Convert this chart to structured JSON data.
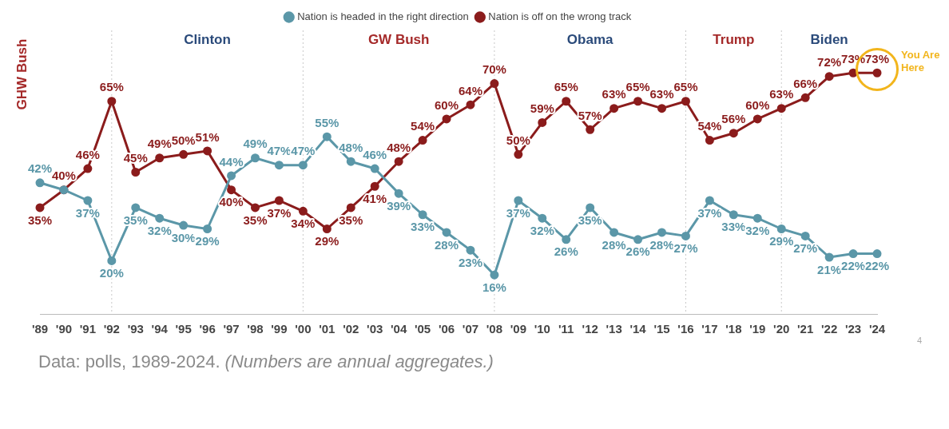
{
  "chart_data": {
    "type": "line",
    "categories": [
      "'89",
      "'90",
      "'91",
      "'92",
      "'93",
      "'94",
      "'95",
      "'96",
      "'97",
      "'98",
      "'99",
      "'00",
      "'01",
      "'02",
      "'03",
      "'04",
      "'05",
      "'06",
      "'07",
      "'08",
      "'09",
      "'10",
      "'11",
      "'12",
      "'13",
      "'14",
      "'15",
      "'16",
      "'17",
      "'18",
      "'19",
      "'20",
      "'21",
      "'22",
      "'23",
      "'24"
    ],
    "series": [
      {
        "name": "Nation is headed in the right direction",
        "color": "#5b97a8",
        "values": [
          42,
          40,
          37,
          20,
          35,
          32,
          30,
          29,
          44,
          49,
          47,
          47,
          55,
          48,
          46,
          39,
          33,
          28,
          23,
          16,
          37,
          32,
          26,
          35,
          28,
          26,
          28,
          27,
          37,
          33,
          32,
          29,
          27,
          21,
          22,
          22
        ],
        "value_labels": [
          "42%",
          null,
          "37%",
          "20%",
          "35%",
          "32%",
          "30%",
          "29%",
          "44%",
          "49%",
          "47%",
          "47%",
          "55%",
          "48%",
          "46%",
          "39%",
          "33%",
          "28%",
          "23%",
          "16%",
          "37%",
          "32%",
          "26%",
          "35%",
          "28%",
          "26%",
          "28%",
          "27%",
          "37%",
          "33%",
          "32%",
          "29%",
          "27%",
          "21%",
          "22%",
          "22%"
        ]
      },
      {
        "name": "Nation is off on the wrong track",
        "color": "#8b1c1c",
        "values": [
          35,
          40,
          46,
          65,
          45,
          49,
          50,
          51,
          40,
          35,
          37,
          34,
          29,
          35,
          41,
          48,
          54,
          60,
          64,
          70,
          50,
          59,
          65,
          57,
          63,
          65,
          63,
          65,
          54,
          56,
          60,
          63,
          66,
          72,
          73,
          73
        ],
        "value_labels": [
          "35%",
          "40%",
          "46%",
          "65%",
          "45%",
          "49%",
          "50%",
          "51%",
          "40%",
          "35%",
          "37%",
          "34%",
          "29%",
          "35%",
          "41%",
          "48%",
          "54%",
          "60%",
          "64%",
          "70%",
          "50%",
          "59%",
          "65%",
          "57%",
          "63%",
          "65%",
          "63%",
          "65%",
          "54%",
          "56%",
          "60%",
          "63%",
          "66%",
          "72%",
          "73%",
          "73%"
        ]
      }
    ],
    "ylim": [
      5,
      85
    ],
    "tick_labels": "x",
    "grid": false,
    "legend": "top",
    "marker": "circle",
    "line_style": "solid",
    "ref_lines": [
      {
        "axis": "x",
        "value": "'92",
        "line_style": "dotted"
      },
      {
        "axis": "x",
        "value": "'00",
        "line_style": "dotted"
      },
      {
        "axis": "x",
        "value": "'08",
        "line_style": "dotted"
      },
      {
        "axis": "x",
        "value": "'16",
        "line_style": "dotted"
      },
      {
        "axis": "x",
        "value": "'20",
        "line_style": "dotted"
      }
    ],
    "annotations": [
      "GHW Bush",
      "Clinton",
      "GW Bush",
      "Obama",
      "Trump",
      "Biden",
      {
        "text": "You Are Here",
        "x": "'24",
        "y": 73
      },
      "Data: polls, 1989-2024.",
      "(Numbers are annual aggregates.)",
      "4"
    ]
  }
}
